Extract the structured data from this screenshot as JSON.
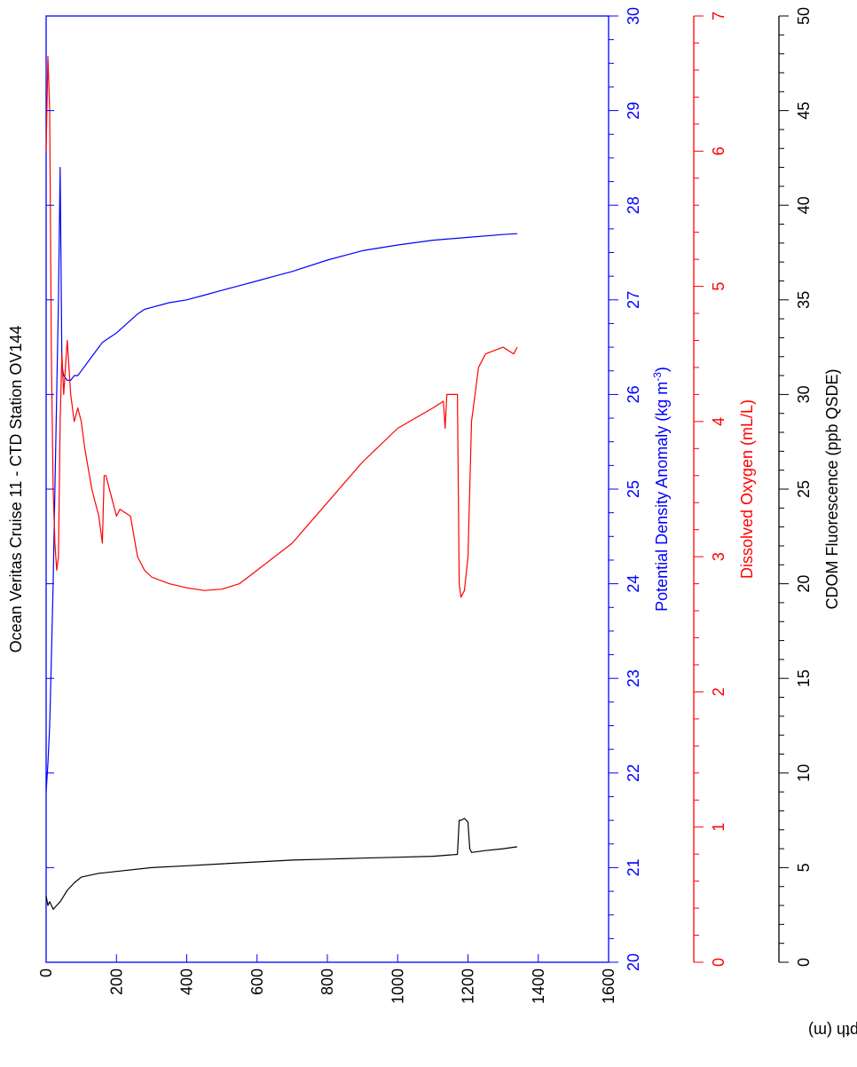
{
  "chart_data": {
    "type": "line",
    "title": "Ocean Veritas Cruise 11 - CTD Station OV144",
    "depth_axis": {
      "label": "Depth (m)",
      "range": [
        0,
        1600
      ],
      "ticks": [
        "0",
        "200",
        "400",
        "600",
        "800",
        "1000",
        "1200",
        "1400",
        "1600"
      ]
    },
    "axes": [
      {
        "id": "density",
        "label_main": "Potential Density Anomaly (kg m",
        "label_sup": "-3",
        "label_end": ")",
        "color": "#0000ff",
        "range": [
          20,
          30
        ],
        "ticks": [
          "20",
          "21",
          "22",
          "23",
          "24",
          "25",
          "26",
          "27",
          "28",
          "29",
          "30"
        ]
      },
      {
        "id": "oxygen",
        "label_main": "Dissolved Oxygen (mL/L)",
        "color": "#ff0000",
        "range": [
          0,
          7
        ],
        "ticks": [
          "0",
          "1",
          "2",
          "3",
          "4",
          "5",
          "6",
          "7"
        ]
      },
      {
        "id": "cdom",
        "label_main": "CDOM Fluorescence (ppb QSDE)",
        "color": "#000000",
        "range": [
          0,
          50
        ],
        "ticks": [
          "0",
          "5",
          "10",
          "15",
          "20",
          "25",
          "30",
          "35",
          "40",
          "45",
          "50"
        ]
      }
    ],
    "series": [
      {
        "axis": "density",
        "depth": [
          0,
          5,
          10,
          15,
          20,
          25,
          30,
          35,
          40,
          45,
          50,
          60,
          70,
          80,
          90,
          100,
          120,
          140,
          160,
          180,
          200,
          230,
          260,
          280,
          300,
          350,
          400,
          450,
          500,
          550,
          600,
          650,
          700,
          800,
          900,
          1000,
          1100,
          1200,
          1300,
          1340
        ],
        "value": [
          21.8,
          22.1,
          22.5,
          23.2,
          24.0,
          25.0,
          26.0,
          27.0,
          28.4,
          26.3,
          26.2,
          26.15,
          26.15,
          26.2,
          26.2,
          26.25,
          26.35,
          26.45,
          26.55,
          26.6,
          26.65,
          26.75,
          26.85,
          26.9,
          26.92,
          26.97,
          27.0,
          27.05,
          27.1,
          27.15,
          27.2,
          27.25,
          27.3,
          27.42,
          27.52,
          27.58,
          27.63,
          27.66,
          27.69,
          27.7
        ]
      },
      {
        "axis": "oxygen",
        "depth": [
          0,
          5,
          10,
          15,
          20,
          25,
          30,
          35,
          40,
          45,
          50,
          55,
          60,
          70,
          80,
          90,
          100,
          110,
          130,
          150,
          160,
          165,
          170,
          190,
          200,
          210,
          240,
          260,
          280,
          300,
          350,
          400,
          450,
          500,
          550,
          600,
          700,
          800,
          900,
          1000,
          1100,
          1130,
          1135,
          1140,
          1170,
          1175,
          1180,
          1190,
          1200,
          1210,
          1230,
          1250,
          1300,
          1330,
          1340
        ],
        "value": [
          6.0,
          6.7,
          6.3,
          4.5,
          3.5,
          3.1,
          2.9,
          3.0,
          4.0,
          4.5,
          4.2,
          4.4,
          4.6,
          4.2,
          4.0,
          4.1,
          4.0,
          3.8,
          3.5,
          3.3,
          3.1,
          3.6,
          3.6,
          3.4,
          3.3,
          3.35,
          3.3,
          3.0,
          2.9,
          2.85,
          2.8,
          2.77,
          2.75,
          2.76,
          2.8,
          2.9,
          3.1,
          3.4,
          3.7,
          3.95,
          4.1,
          4.15,
          3.95,
          4.2,
          4.2,
          2.8,
          2.7,
          2.75,
          3.0,
          4.0,
          4.4,
          4.5,
          4.55,
          4.5,
          4.55
        ]
      },
      {
        "axis": "cdom",
        "depth": [
          0,
          5,
          10,
          20,
          30,
          40,
          50,
          60,
          80,
          100,
          150,
          200,
          300,
          400,
          500,
          600,
          700,
          800,
          900,
          1000,
          1100,
          1170,
          1175,
          1180,
          1190,
          1200,
          1205,
          1210,
          1250,
          1300,
          1340
        ],
        "value": [
          3.5,
          3.0,
          3.2,
          2.8,
          3.0,
          3.2,
          3.5,
          3.8,
          4.2,
          4.5,
          4.7,
          4.8,
          5.0,
          5.1,
          5.2,
          5.3,
          5.4,
          5.45,
          5.5,
          5.55,
          5.6,
          5.7,
          7.5,
          7.5,
          7.6,
          7.4,
          6.0,
          5.8,
          5.9,
          6.0,
          6.1
        ]
      }
    ]
  }
}
